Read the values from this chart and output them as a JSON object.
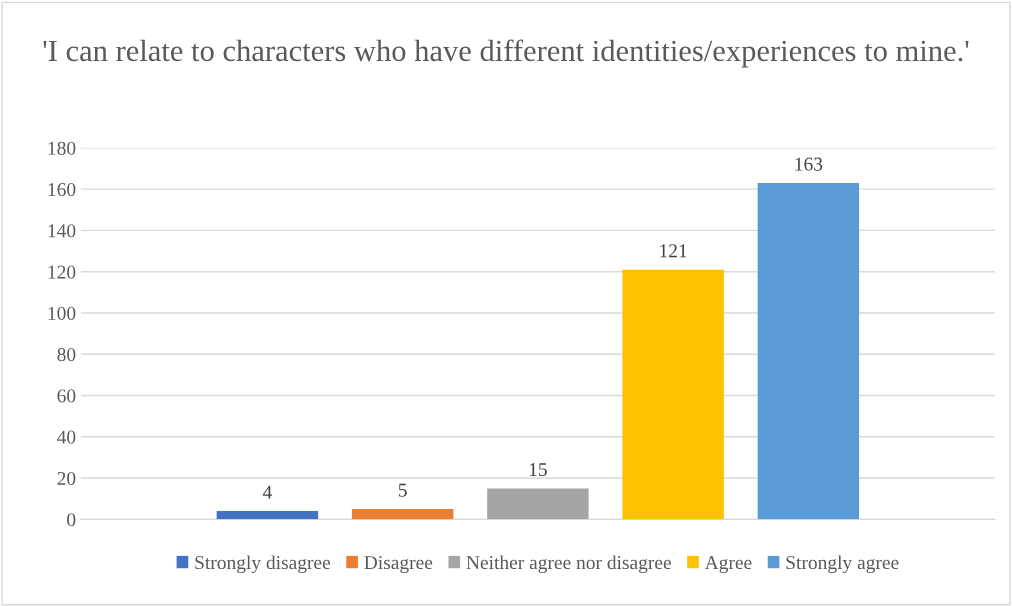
{
  "chart_data": {
    "type": "bar",
    "title": "'I can relate to characters who have different identities/experiences to mine.'",
    "categories": [
      null
    ],
    "series": [
      {
        "name": "Strongly disagree",
        "color": "#4472c4",
        "values": [
          4
        ]
      },
      {
        "name": "Disagree",
        "color": "#ed7d31",
        "values": [
          5
        ]
      },
      {
        "name": "Neither agree nor disagree",
        "color": "#a5a5a5",
        "values": [
          15
        ]
      },
      {
        "name": "Agree",
        "color": "#ffc000",
        "values": [
          121
        ]
      },
      {
        "name": "Strongly agree",
        "color": "#5b9bd5",
        "values": [
          163
        ]
      }
    ],
    "ylim": [
      0,
      180
    ],
    "yticks": [
      0,
      20,
      40,
      60,
      80,
      100,
      120,
      140,
      160,
      180
    ],
    "grid": "y",
    "legend": "bottom",
    "data_labels": true
  }
}
